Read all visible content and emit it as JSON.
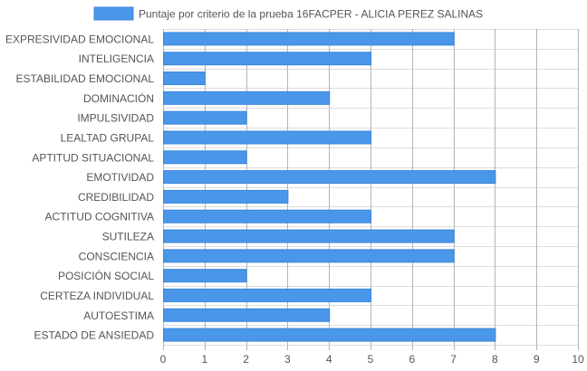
{
  "chart_data": {
    "type": "bar",
    "orientation": "horizontal",
    "legend": {
      "position": "top-center",
      "label": "Puntaje por criterio de la prueba 16FACPER - ALICIA PEREZ SALINAS"
    },
    "categories": [
      "EXPRESIVIDAD EMOCIONAL",
      "INTELIGENCIA",
      "ESTABILIDAD EMOCIONAL",
      "DOMINACIÓN",
      "IMPULSIVIDAD",
      "LEALTAD GRUPAL",
      "APTITUD SITUACIONAL",
      "EMOTIVIDAD",
      "CREDIBILIDAD",
      "ACTITUD COGNITIVA",
      "SUTILEZA",
      "CONSCIENCIA",
      "POSICIÓN SOCIAL",
      "CERTEZA INDIVIDUAL",
      "AUTOESTIMA",
      "ESTADO DE ANSIEDAD"
    ],
    "series": [
      {
        "name": "Puntaje por criterio de la prueba 16FACPER - ALICIA PEREZ SALINAS",
        "values": [
          7,
          5,
          1,
          4,
          2,
          5,
          2,
          8,
          3,
          5,
          7,
          7,
          2,
          5,
          4,
          8
        ]
      }
    ],
    "xlim": [
      0,
      10
    ],
    "x_ticks": [
      "0",
      "1",
      "2",
      "3",
      "4",
      "5",
      "6",
      "7",
      "8",
      "9",
      "10"
    ],
    "grid": true,
    "colors": {
      "bar_fill": "#4a97e9",
      "bar_stroke": "#3a86dc",
      "grid": "#dcdcdc",
      "axis_grid": "#b5b5b5",
      "text": "#555555"
    }
  }
}
